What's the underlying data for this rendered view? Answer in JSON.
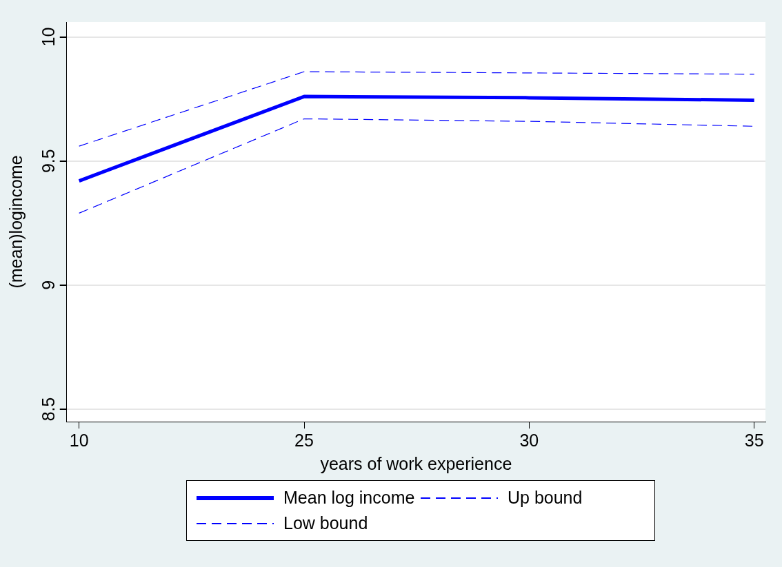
{
  "chart_data": {
    "type": "line",
    "xlabel": "years of work experience",
    "ylabel": "(mean)logincome",
    "categories": [
      "10",
      "25",
      "30",
      "35"
    ],
    "ylim": [
      8.45,
      10.06
    ],
    "yticks": [
      8.5,
      9,
      9.5,
      10
    ],
    "grid": "y",
    "legend": "bottom",
    "marker": "none",
    "series": [
      {
        "name": "Mean log income",
        "color": "#0000ff",
        "line_style": "solid",
        "values": [
          9.42,
          9.76,
          9.755,
          9.745
        ]
      },
      {
        "name": "Up bound",
        "color": "#0000ff",
        "line_style": "dashed",
        "values": [
          9.56,
          9.86,
          9.855,
          9.85
        ]
      },
      {
        "name": "Low bound",
        "color": "#0000ff",
        "line_style": "dashed",
        "values": [
          9.29,
          9.67,
          9.66,
          9.64
        ]
      }
    ]
  }
}
